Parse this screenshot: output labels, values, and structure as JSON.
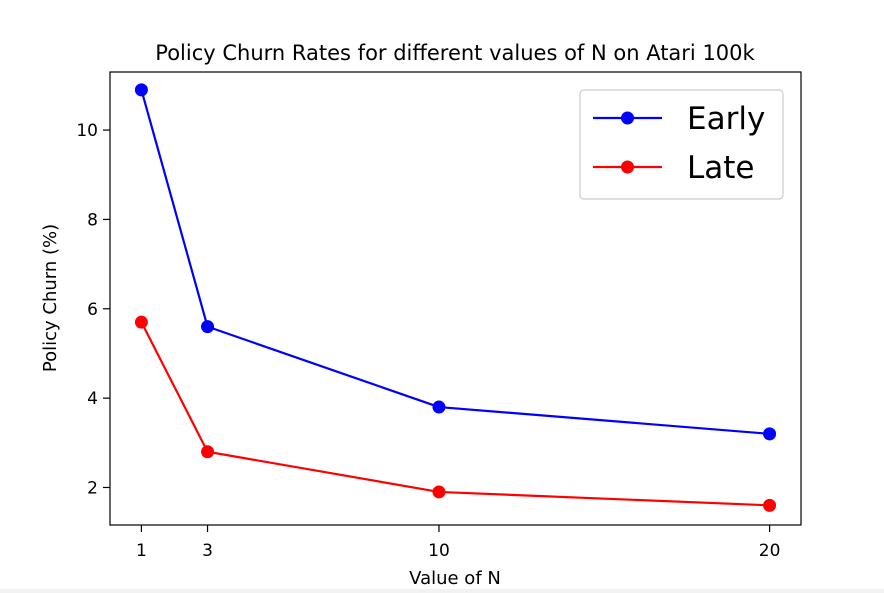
{
  "chart_data": {
    "type": "line",
    "title": "Policy Churn Rates for different values of N on Atari 100k",
    "xlabel": "Value of N",
    "ylabel": "Policy Churn (%)",
    "x": [
      1,
      3,
      10,
      20
    ],
    "xlim": [
      0.05,
      20.95
    ],
    "ylim": [
      1.16,
      11.3
    ],
    "xticks": [
      1,
      3,
      10,
      20
    ],
    "xtick_labels": [
      "1",
      "3",
      "10",
      "20"
    ],
    "yticks": [
      2,
      4,
      6,
      8,
      10
    ],
    "ytick_labels": [
      "2",
      "4",
      "6",
      "8",
      "10"
    ],
    "grid": false,
    "legend_position": "top-right",
    "series": [
      {
        "name": "Early",
        "color": "#0000ff",
        "marker": "circle",
        "values": [
          10.9,
          5.6,
          3.8,
          3.2
        ]
      },
      {
        "name": "Late",
        "color": "#ff0000",
        "marker": "circle",
        "values": [
          5.7,
          2.8,
          1.9,
          1.6
        ]
      }
    ]
  }
}
